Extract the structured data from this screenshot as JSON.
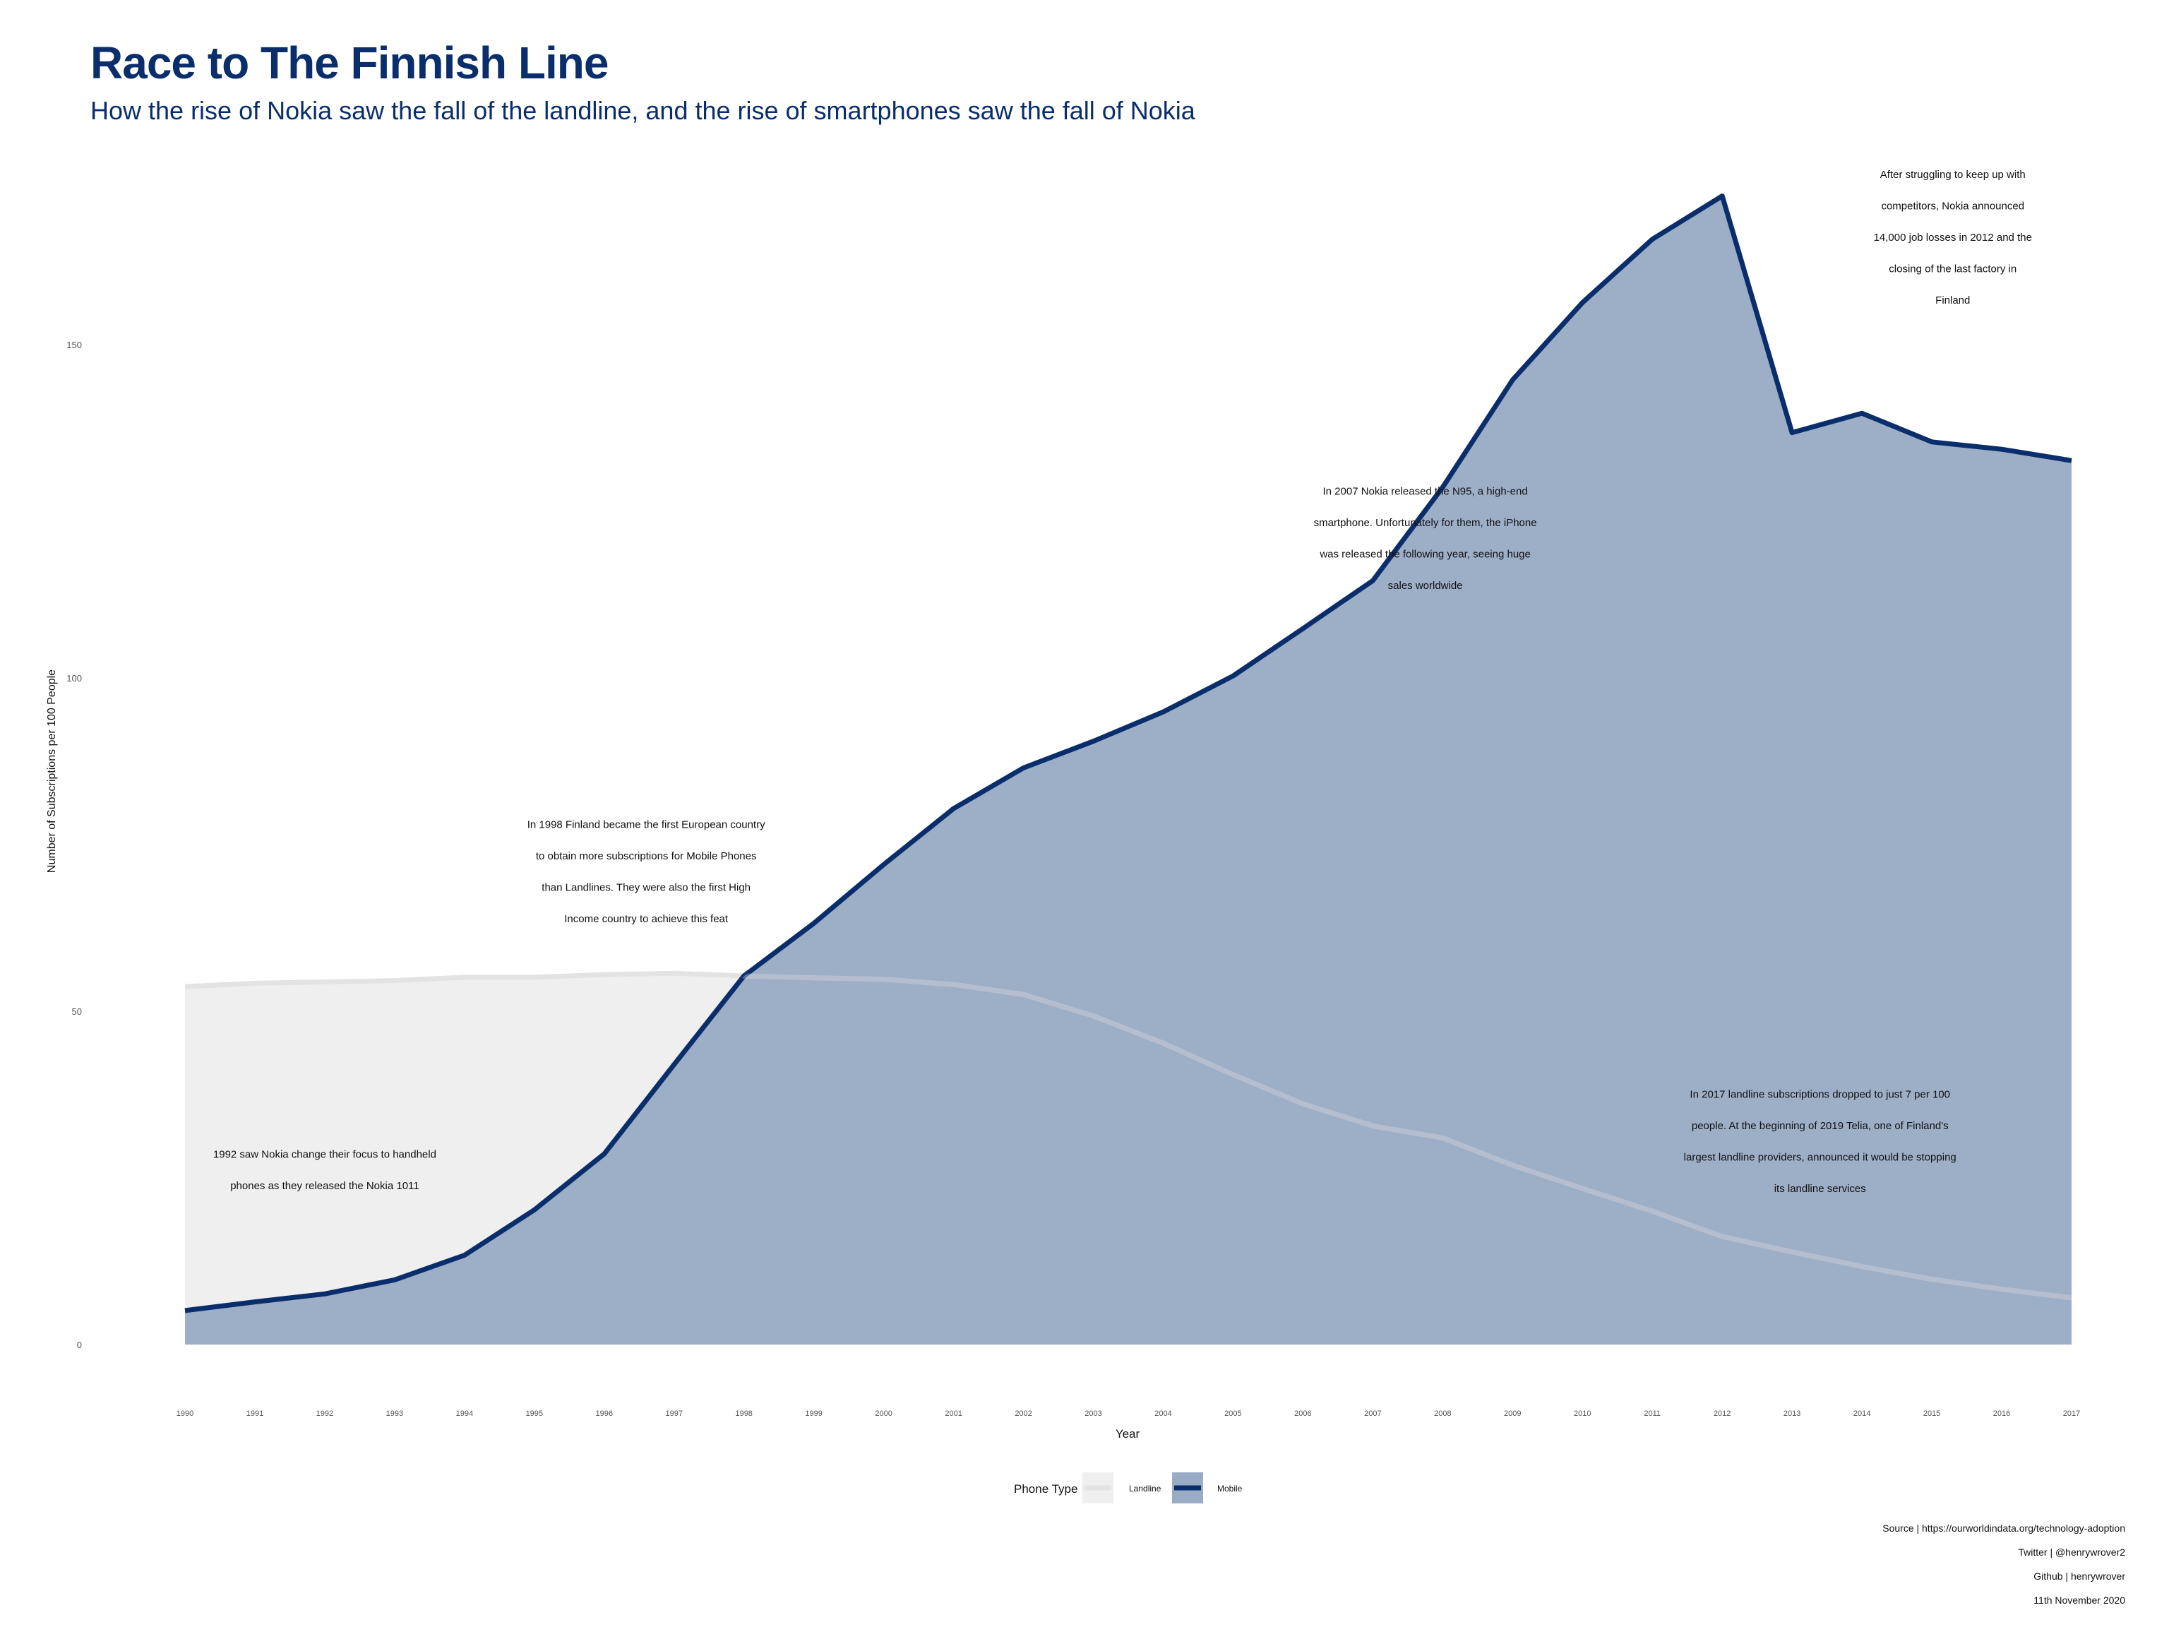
{
  "chart_data": {
    "type": "area",
    "title": "Race to The Finnish Line",
    "subtitle": "How the rise of Nokia saw the fall of the landline, and the rise of smartphones saw the fall of Nokia",
    "xlabel": "Year",
    "ylabel": "Number of Subscriptions per 100 People",
    "ylim": [
      0,
      180
    ],
    "y_ticks": [
      "0",
      "50",
      "100",
      "150"
    ],
    "grid": false,
    "legend_title": "Phone Type",
    "legend_position": "bottom",
    "x": [
      "1990",
      "1991",
      "1992",
      "1993",
      "1994",
      "1995",
      "1996",
      "1997",
      "1998",
      "1999",
      "2000",
      "2001",
      "2002",
      "2003",
      "2004",
      "2005",
      "2006",
      "2007",
      "2008",
      "2009",
      "2010",
      "2011",
      "2012",
      "2013",
      "2014",
      "2015",
      "2016",
      "2017"
    ],
    "series": [
      {
        "name": "Landline",
        "fill": "#efefef",
        "line": "#e3e3e3",
        "values": [
          53.7,
          54.2,
          54.4,
          54.6,
          55.1,
          55.1,
          55.5,
          55.7,
          55.3,
          55.0,
          54.8,
          54.0,
          52.5,
          49.3,
          45.2,
          40.5,
          36.1,
          32.8,
          31.0,
          26.9,
          23.4,
          20.0,
          16.2,
          13.9,
          11.7,
          9.8,
          8.3,
          7.0
        ]
      },
      {
        "name": "Mobile",
        "fill": "#9aabc5",
        "line": "#0a2e6b",
        "values": [
          5.1,
          6.4,
          7.6,
          9.7,
          13.4,
          20.2,
          28.6,
          42.0,
          55.3,
          63.2,
          72.0,
          80.4,
          86.5,
          90.5,
          94.9,
          100.3,
          107.4,
          114.6,
          128.6,
          144.7,
          156.3,
          165.8,
          172.3,
          136.8,
          139.7,
          135.4,
          134.3,
          132.6
        ]
      }
    ],
    "annotations": [
      {
        "year": 1992,
        "y": 28,
        "text": [
          "1992 saw Nokia change their focus to handheld",
          "phones as they released the Nokia 1011"
        ]
      },
      {
        "year": 1996.6,
        "y": 77.5,
        "text": [
          "In 1998 Finland became the first European country",
          "to obtain more subscriptions for Mobile Phones",
          "than Landlines. They were also the first High",
          "Income country to achieve this feat"
        ]
      },
      {
        "year": 2007.75,
        "y": 127.5,
        "text": [
          "In 2007 Nokia released the N95, a high-end",
          "smartphone. Unfortunately for them, the iPhone",
          "was released the following year, seeing huge",
          "sales worldwide"
        ]
      },
      {
        "year": 2015.3,
        "y": 175,
        "text": [
          "After struggling to keep up with",
          "competitors, Nokia announced",
          "14,000 job losses in 2012 and the",
          "closing of the last factory in",
          "Finland"
        ]
      },
      {
        "year": 2013.4,
        "y": 37,
        "text": [
          "In 2017 landline subscriptions dropped to just 7 per 100",
          "people. At the beginning of 2019 Telia, one of Finland's",
          "largest landline providers, announced it would be stopping",
          "its landline services"
        ]
      }
    ]
  },
  "captions": [
    "Source | https://ourworldindata.org/technology-adoption",
    "Twitter | @henrywrover2",
    "Github | henrywrover",
    "11th November 2020"
  ]
}
